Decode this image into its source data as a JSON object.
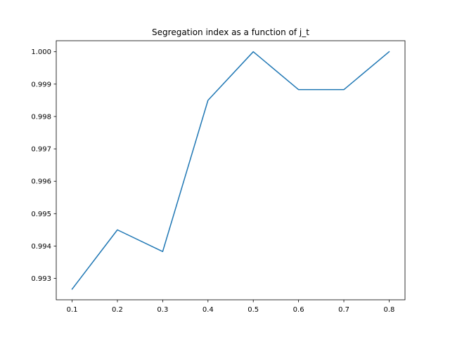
{
  "chart_data": {
    "type": "line",
    "title": "Segregation index as a function of j_t",
    "xlabel": "",
    "ylabel": "",
    "x": [
      0.1,
      0.2,
      0.3,
      0.4,
      0.5,
      0.6,
      0.7,
      0.8
    ],
    "series": [
      {
        "values": [
          0.99267,
          0.9945,
          0.99383,
          0.9985,
          1.0,
          0.99883,
          0.99883,
          1.0
        ],
        "color": "#1f77b4"
      }
    ],
    "xlim": [
      0.065,
      0.835
    ],
    "ylim": [
      0.99234,
      1.00034
    ],
    "xticks": [
      0.1,
      0.2,
      0.3,
      0.4,
      0.5,
      0.6,
      0.7,
      0.8
    ],
    "xtick_labels": [
      "0.1",
      "0.2",
      "0.3",
      "0.4",
      "0.5",
      "0.6",
      "0.7",
      "0.8"
    ],
    "yticks": [
      0.993,
      0.994,
      0.995,
      0.996,
      0.997,
      0.998,
      0.999,
      1.0
    ],
    "ytick_labels": [
      "0.993",
      "0.994",
      "0.995",
      "0.996",
      "0.997",
      "0.998",
      "0.999",
      "1.000"
    ],
    "grid": false
  }
}
